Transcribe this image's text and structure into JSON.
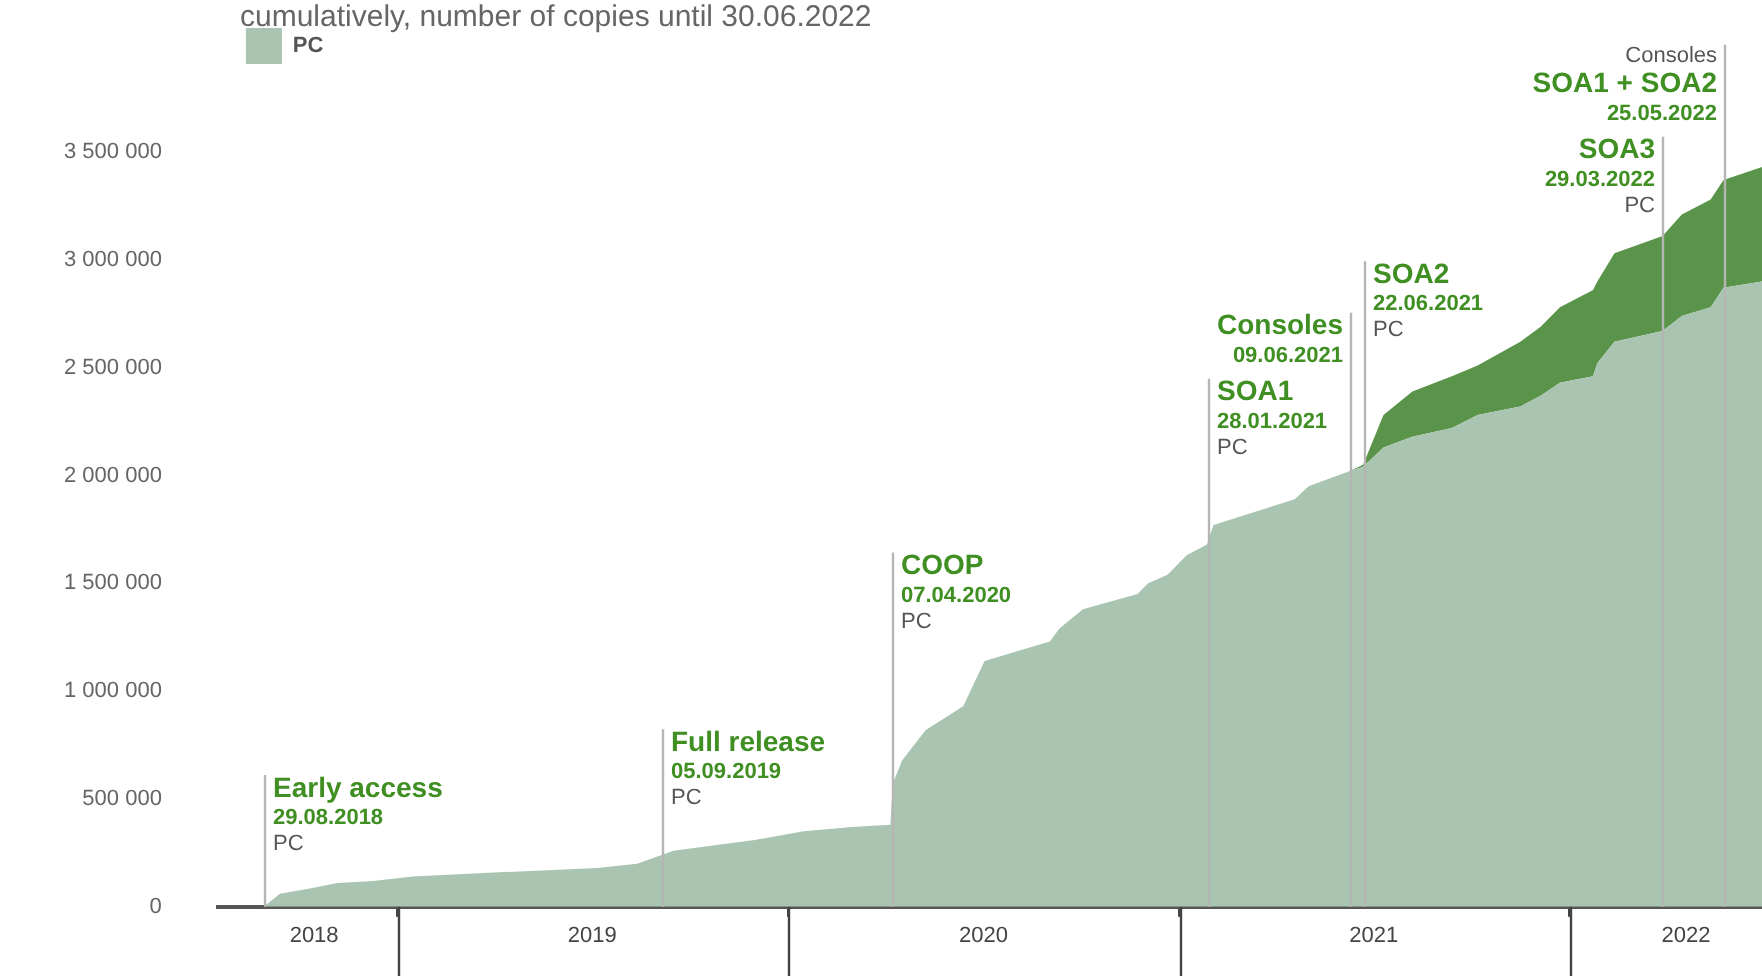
{
  "chart_data": {
    "type": "area",
    "subtitle": "cumulatively, number of copies until 30.06.2022",
    "stacked": true,
    "legend": "top left",
    "grid": false,
    "xlim": [
      "2018-07-17",
      "2022-06-30"
    ],
    "xticks": [
      {
        "value": "2018-10-15",
        "label": "2018"
      },
      {
        "value": "2019-01-01",
        "label": null
      },
      {
        "value": "2019-07-02",
        "label": "2019"
      },
      {
        "value": "2020-01-01",
        "label": null
      },
      {
        "value": "2020-07-02",
        "label": "2020"
      },
      {
        "value": "2021-01-01",
        "label": null
      },
      {
        "value": "2021-07-02",
        "label": "2021"
      },
      {
        "value": "2022-01-01",
        "label": null
      },
      {
        "value": "2022-04-20",
        "label": "2022"
      }
    ],
    "ylim": [
      0,
      3500000
    ],
    "yticks": [
      {
        "value": 0,
        "label": "0"
      },
      {
        "value": 500000,
        "label": "500 000"
      },
      {
        "value": 1000000,
        "label": "1 000 000"
      },
      {
        "value": 1500000,
        "label": "1 500 000"
      },
      {
        "value": 2000000,
        "label": "2 000 000"
      },
      {
        "value": 2500000,
        "label": "2 500 000"
      },
      {
        "value": 3000000,
        "label": "3 000 000"
      },
      {
        "value": 3500000,
        "label": "3 500 000"
      }
    ],
    "x": [
      "2018-08-29",
      "2018-09-13",
      "2018-10-06",
      "2018-11-06",
      "2018-12-09",
      "2019-01-15",
      "2019-04-06",
      "2019-07-07",
      "2019-08-13",
      "2019-09-05",
      "2019-09-16",
      "2019-10-16",
      "2019-12-01",
      "2020-01-16",
      "2020-03-01",
      "2020-04-06",
      "2020-04-08",
      "2020-04-17",
      "2020-05-09",
      "2020-06-13",
      "2020-07-03",
      "2020-09-02",
      "2020-09-11",
      "2020-10-03",
      "2020-11-23",
      "2020-12-03",
      "2020-12-21",
      "2021-01-08",
      "2021-01-27",
      "2021-02-02",
      "2021-04-19",
      "2021-05-02",
      "2021-06-09",
      "2021-06-22",
      "2021-07-11",
      "2021-08-07",
      "2021-09-13",
      "2021-10-07",
      "2021-11-16",
      "2021-12-05",
      "2021-12-23",
      "2022-01-23",
      "2022-01-27",
      "2022-02-12",
      "2022-03-29",
      "2022-04-16",
      "2022-05-13",
      "2022-05-25",
      "2022-06-30"
    ],
    "series": [
      {
        "name": "PC",
        "color": "#a9c4b0",
        "values": [
          0,
          60000,
          80000,
          110000,
          120000,
          140000,
          160000,
          180000,
          200000,
          240000,
          260000,
          280000,
          310000,
          350000,
          370000,
          380000,
          570000,
          680000,
          820000,
          930000,
          1140000,
          1230000,
          1290000,
          1380000,
          1450000,
          1500000,
          1540000,
          1630000,
          1680000,
          1770000,
          1890000,
          1950000,
          2020000,
          2040000,
          2130000,
          2180000,
          2220000,
          2280000,
          2320000,
          2370000,
          2430000,
          2460000,
          2520000,
          2620000,
          2670000,
          2740000,
          2780000,
          2870000,
          2900000
        ]
      },
      {
        "color": "#5a944a",
        "values": [
          null,
          null,
          null,
          null,
          null,
          null,
          null,
          null,
          null,
          null,
          null,
          null,
          null,
          null,
          null,
          null,
          null,
          null,
          null,
          null,
          null,
          null,
          null,
          null,
          null,
          null,
          null,
          null,
          null,
          null,
          null,
          null,
          0,
          10000,
          150000,
          210000,
          240000,
          230000,
          300000,
          320000,
          350000,
          400000,
          380000,
          410000,
          440000,
          470000,
          500000,
          500000,
          530000
        ]
      }
    ],
    "ref_lines": [
      {
        "axis": "x",
        "value": "2018-08-29",
        "label": "Early access\n29.08.2018\nPC"
      },
      {
        "axis": "x",
        "value": "2019-09-05",
        "label": "Full release\n05.09.2019\nPC"
      },
      {
        "axis": "x",
        "value": "2020-04-07",
        "label": "COOP\n07.04.2020\nPC"
      },
      {
        "axis": "x",
        "value": "2021-01-28",
        "label": "SOA1\n28.01.2021\nPC"
      },
      {
        "axis": "x",
        "value": "2021-06-09",
        "label": "Consoles\n09.06.2021"
      },
      {
        "axis": "x",
        "value": "2021-06-22",
        "label": "SOA2\n22.06.2021\nPC"
      },
      {
        "axis": "x",
        "value": "2022-03-29",
        "label": "SOA3\n29.03.2022\nPC"
      },
      {
        "axis": "x",
        "value": "2022-05-25",
        "label": "Consoles\nSOA1 + SOA2\n25.05.2022"
      }
    ]
  }
}
